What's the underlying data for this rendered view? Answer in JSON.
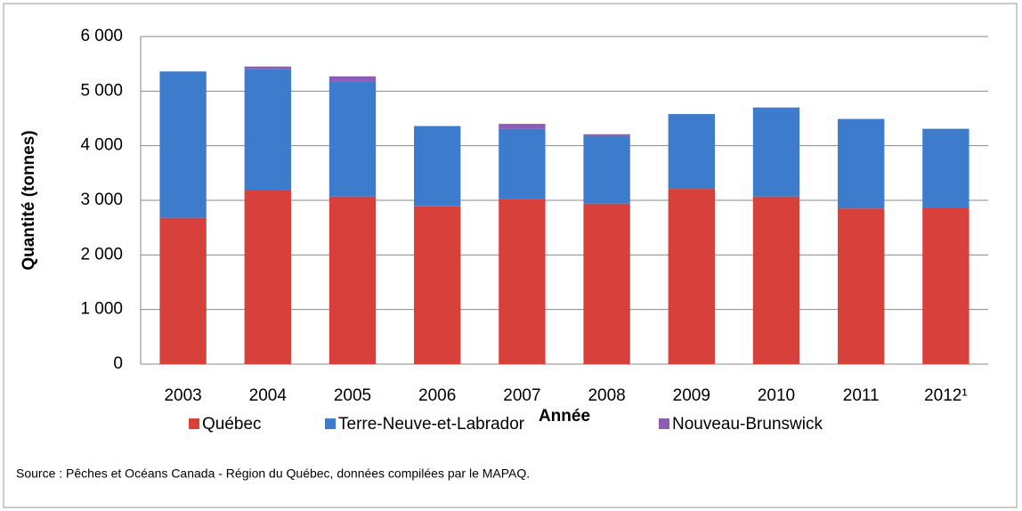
{
  "chart_data": {
    "type": "stacked_bar",
    "categories": [
      "2003",
      "2004",
      "2005",
      "2006",
      "2007",
      "2008",
      "2009",
      "2010",
      "2011",
      "2012¹"
    ],
    "series": [
      {
        "name": "Québec",
        "color": "#d8403c",
        "values": [
          2680,
          3180,
          3070,
          2890,
          3030,
          2940,
          3210,
          3070,
          2850,
          2870
        ]
      },
      {
        "name": "Terre-Neuve-et-Labrador",
        "color": "#3d7ccc",
        "values": [
          2680,
          2220,
          2100,
          1470,
          1280,
          1240,
          1370,
          1630,
          1640,
          1440
        ]
      },
      {
        "name": "Nouveau-Brunswick",
        "color": "#8e5cb4",
        "values": [
          0,
          50,
          100,
          0,
          90,
          30,
          0,
          0,
          0,
          0
        ]
      }
    ],
    "ylim": [
      0,
      6000
    ],
    "yticks": [
      {
        "value": 0,
        "label": "0"
      },
      {
        "value": 1000,
        "label": "1 000"
      },
      {
        "value": 2000,
        "label": "2 000"
      },
      {
        "value": 3000,
        "label": "3 000"
      },
      {
        "value": 4000,
        "label": "4 000"
      },
      {
        "value": 5000,
        "label": "5 000"
      },
      {
        "value": 6000,
        "label": "6 000"
      }
    ],
    "y_label": "Quantité (tonnes)",
    "x_label": "Année",
    "source": "Source : Pêches et Océans Canada - Région du Québec, données compilées par le MAPAQ.",
    "grid": true,
    "legend": "bottom"
  }
}
